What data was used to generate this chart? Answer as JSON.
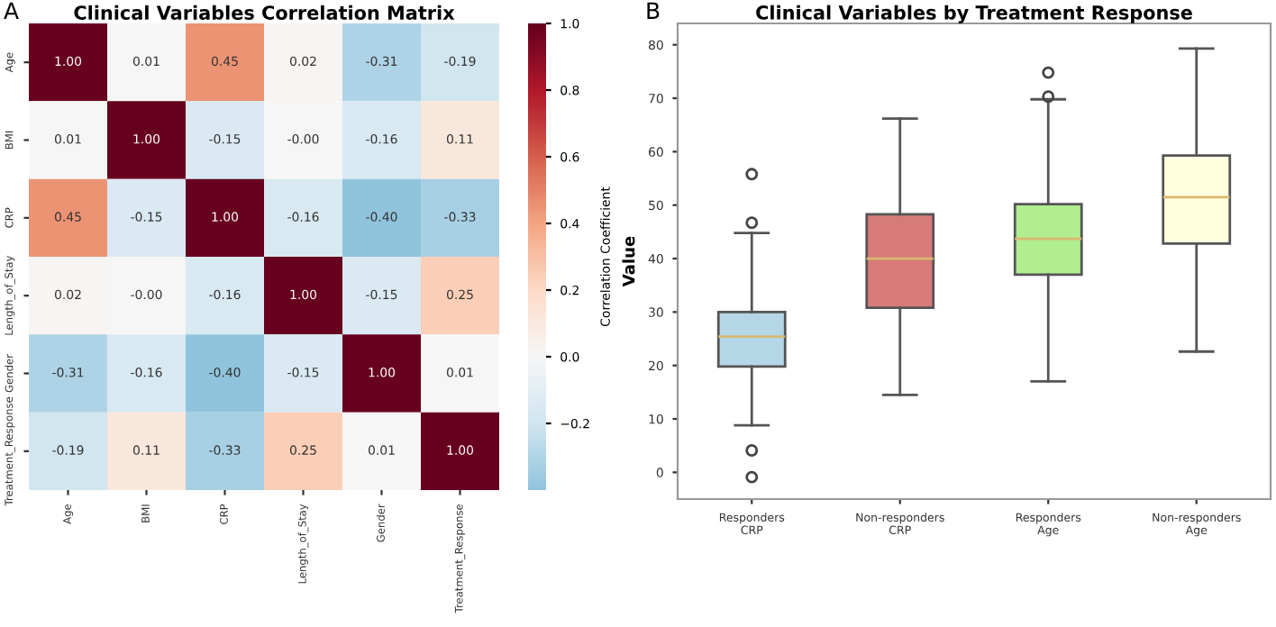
{
  "chart_data": [
    {
      "type": "heatmap",
      "title": "Clinical Variables Correlation Matrix",
      "clabel": "Correlation Coefficient",
      "annotations": [
        "A"
      ],
      "categories": [
        "Age",
        "BMI",
        "CRP",
        "Length_of_Stay",
        "Gender",
        "Treatment_Response"
      ],
      "y_categories": [
        "Age",
        "BMI",
        "CRP",
        "Length_of_Stay",
        "Gender",
        "Treatment_Response"
      ],
      "cells": [
        [
          1.0,
          0.01,
          0.45,
          0.02,
          -0.31,
          -0.19
        ],
        [
          0.01,
          1.0,
          -0.15,
          -0.0,
          -0.16,
          0.11
        ],
        [
          0.45,
          -0.15,
          1.0,
          -0.16,
          -0.4,
          -0.33
        ],
        [
          0.02,
          -0.0,
          -0.16,
          1.0,
          -0.15,
          0.25
        ],
        [
          -0.31,
          -0.16,
          -0.4,
          -0.15,
          1.0,
          0.01
        ],
        [
          -0.19,
          0.11,
          -0.33,
          0.25,
          0.01,
          1.0
        ]
      ],
      "cell_labels": [
        [
          "1.00",
          "0.01",
          "0.45",
          "0.02",
          "-0.31",
          "-0.19"
        ],
        [
          "0.01",
          "1.00",
          "-0.15",
          "-0.00",
          "-0.16",
          "0.11"
        ],
        [
          "0.45",
          "-0.15",
          "1.00",
          "-0.16",
          "-0.40",
          "-0.33"
        ],
        [
          "0.02",
          "-0.00",
          "-0.16",
          "1.00",
          "-0.15",
          "0.25"
        ],
        [
          "-0.31",
          "-0.16",
          "-0.40",
          "-0.15",
          "1.00",
          "0.01"
        ],
        [
          "-0.19",
          "0.11",
          "-0.33",
          "0.25",
          "0.01",
          "1.00"
        ]
      ],
      "clim": [
        -0.4,
        1.0
      ],
      "cticks": [
        {
          "value": -0.2,
          "label": "−0.2"
        },
        {
          "value": 0.0,
          "label": "0.0"
        },
        {
          "value": 0.2,
          "label": "0.2"
        },
        {
          "value": 0.4,
          "label": "0.4"
        },
        {
          "value": 0.6,
          "label": "0.6"
        },
        {
          "value": 0.8,
          "label": "0.8"
        },
        {
          "value": 1.0,
          "label": "1.0"
        }
      ]
    },
    {
      "type": "box",
      "title": "Clinical Variables by Treatment Response",
      "ylabel": "Value",
      "annotations": [
        "B"
      ],
      "categories": [
        "Responders\nCRP",
        "Non-responders\nCRP",
        "Responders\nAge",
        "Non-responders\nAge"
      ],
      "colors": [
        "#b4d6e6",
        "#d67b7a",
        "#b0ee90",
        "#ffffe0"
      ],
      "boxes": [
        {
          "low": 8.8,
          "q1": 19.8,
          "median": 25.4,
          "q3": 30.0,
          "high": 44.8,
          "outliers": [
            55.8,
            46.7,
            4.1,
            -0.9
          ]
        },
        {
          "low": 14.5,
          "q1": 30.8,
          "median": 40.0,
          "q3": 48.3,
          "high": 66.2
        },
        {
          "low": 17.0,
          "q1": 37.0,
          "median": 43.7,
          "q3": 50.2,
          "high": 69.8,
          "outliers": [
            74.8,
            70.3
          ]
        },
        {
          "low": 22.6,
          "q1": 42.8,
          "median": 51.5,
          "q3": 59.3,
          "high": 79.3
        }
      ],
      "ylim": [
        -5,
        84
      ],
      "yticks": [
        0,
        10,
        20,
        30,
        40,
        50,
        60,
        70,
        80
      ]
    }
  ]
}
